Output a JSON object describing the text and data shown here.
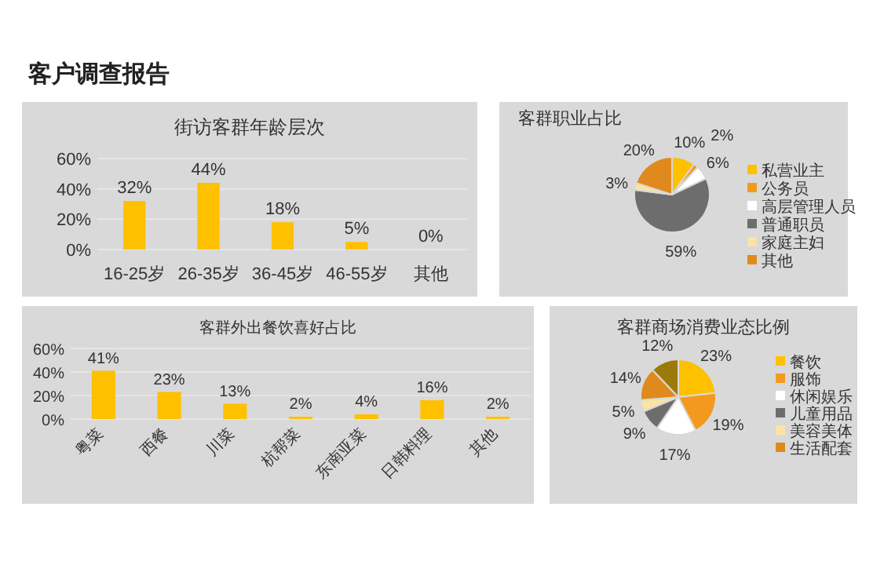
{
  "chart_data": [
    {
      "type": "other",
      "title": "客户调查报告"
    },
    {
      "type": "bar",
      "title": "街访客群年龄层次",
      "categories": [
        "16-25岁",
        "26-35岁",
        "36-45岁",
        "46-55岁",
        "其他"
      ],
      "values": [
        32,
        44,
        18,
        5,
        0
      ],
      "value_labels": [
        "32%",
        "44%",
        "18%",
        "5%",
        "0%"
      ],
      "color": "#ffc000",
      "ylim": [
        0,
        60
      ],
      "yticks": [
        {
          "value": 0,
          "label": "0%"
        },
        {
          "value": 20,
          "label": "20%"
        },
        {
          "value": 40,
          "label": "40%"
        },
        {
          "value": 60,
          "label": "60%"
        }
      ],
      "grid": "y"
    },
    {
      "type": "pie",
      "title": "客群职业占比",
      "categories": [
        "私营业主",
        "公务员",
        "高层管理人员",
        "普通职员",
        "家庭主妇",
        "其他"
      ],
      "values": [
        10,
        2,
        6,
        59,
        3,
        20
      ],
      "value_labels": [
        "10%",
        "2%",
        "6%",
        "59%",
        "3%",
        "20%"
      ],
      "colors": [
        "#ffc000",
        "#f39a1e",
        "#ffffff",
        "#6d6d6d",
        "#fbe3a6",
        "#e08a1e"
      ],
      "legend": "right"
    },
    {
      "type": "bar",
      "title": "客群外出餐饮喜好占比",
      "categories": [
        "粤菜",
        "西餐",
        "川菜",
        "杭帮菜",
        "东南亚菜",
        "日韩料理",
        "其他"
      ],
      "values": [
        41,
        23,
        13,
        2,
        4,
        16,
        2
      ],
      "value_labels": [
        "41%",
        "23%",
        "13%",
        "2%",
        "4%",
        "16%",
        "2%"
      ],
      "color": "#ffc000",
      "ylim": [
        0,
        60
      ],
      "yticks": [
        {
          "value": 0,
          "label": "0%"
        },
        {
          "value": 20,
          "label": "20%"
        },
        {
          "value": 40,
          "label": "40%"
        },
        {
          "value": 60,
          "label": "60%"
        }
      ],
      "grid": "y"
    },
    {
      "type": "pie",
      "title": "客群商场消费业态比例",
      "categories": [
        "餐饮",
        "服饰",
        "休闲娱乐",
        "儿童用品",
        "美容美体",
        "生活配套",
        null
      ],
      "values": [
        23,
        19,
        17,
        9,
        5,
        14,
        12
      ],
      "value_labels": [
        "23%",
        "19%",
        "17%",
        "9%",
        "5%",
        "14%",
        "12%"
      ],
      "colors": [
        "#ffc000",
        "#f39a1e",
        "#ffffff",
        "#6d6d6d",
        "#fbe3a6",
        "#e08a1e",
        "#9c7a0a"
      ],
      "legend": "right"
    }
  ]
}
